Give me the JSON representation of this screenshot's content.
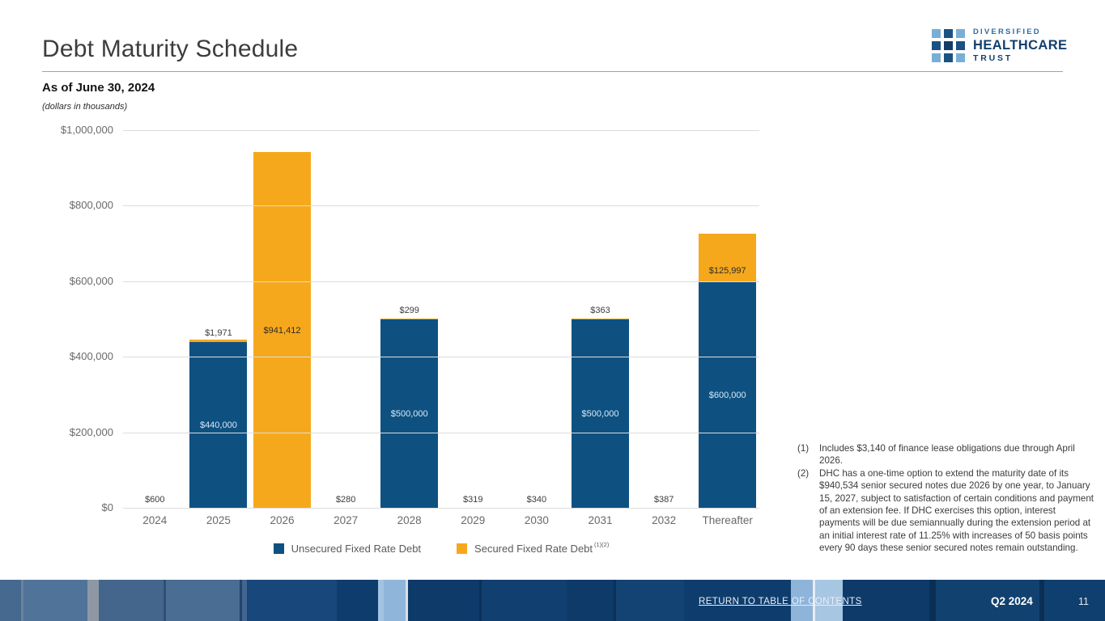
{
  "header": {
    "title": "Debt Maturity Schedule",
    "as_of": "As of June 30, 2024",
    "units_note": "(dollars in thousands)",
    "logo": {
      "line1": "DIVERSIFIED",
      "line2": "HEALTHCARE",
      "line3": "TRUST"
    }
  },
  "colors": {
    "unsecured": "#0e5181",
    "secured": "#f6a81c",
    "gridline": "#dcdcdc",
    "axis_text": "#696969"
  },
  "chart_data": {
    "type": "bar",
    "stacked": true,
    "title": "Debt Maturity Schedule",
    "units": "dollars in thousands",
    "xlabel": "",
    "ylabel": "",
    "ylim": [
      0,
      1000000
    ],
    "grid": true,
    "categories": [
      "2024",
      "2025",
      "2026",
      "2027",
      "2028",
      "2029",
      "2030",
      "2031",
      "2032",
      "Thereafter"
    ],
    "y_ticks": [
      {
        "value": 0,
        "label": "$0"
      },
      {
        "value": 200000,
        "label": "$200,000"
      },
      {
        "value": 400000,
        "label": "$400,000"
      },
      {
        "value": 600000,
        "label": "$600,000"
      },
      {
        "value": 800000,
        "label": "$800,000"
      },
      {
        "value": 1000000,
        "label": "$1,000,000"
      }
    ],
    "series": [
      {
        "name": "Unsecured Fixed Rate Debt",
        "key": "unsecured",
        "color": "#0e5181",
        "values": [
          0,
          440000,
          0,
          0,
          500000,
          0,
          0,
          500000,
          0,
          600000
        ]
      },
      {
        "name": "Secured Fixed Rate Debt",
        "key": "secured",
        "color": "#f6a81c",
        "values": [
          600,
          1971,
          941412,
          280,
          299,
          319,
          340,
          363,
          387,
          125997
        ]
      }
    ],
    "bars": [
      {
        "category": "2024",
        "segments": [
          {
            "series": "secured",
            "value": 600,
            "label": "$600",
            "label_pos": "above"
          }
        ]
      },
      {
        "category": "2025",
        "segments": [
          {
            "series": "unsecured",
            "value": 440000,
            "label": "$440,000",
            "label_pos": "center"
          },
          {
            "series": "secured",
            "value": 1971,
            "label": "$1,971",
            "label_pos": "above"
          }
        ]
      },
      {
        "category": "2026",
        "segments": [
          {
            "series": "secured",
            "value": 941412,
            "label": "$941,412",
            "label_pos": "center"
          }
        ]
      },
      {
        "category": "2027",
        "segments": [
          {
            "series": "secured",
            "value": 280,
            "label": "$280",
            "label_pos": "above"
          }
        ]
      },
      {
        "category": "2028",
        "segments": [
          {
            "series": "unsecured",
            "value": 500000,
            "label": "$500,000",
            "label_pos": "center"
          },
          {
            "series": "secured",
            "value": 299,
            "label": "$299",
            "label_pos": "above"
          }
        ]
      },
      {
        "category": "2029",
        "segments": [
          {
            "series": "secured",
            "value": 319,
            "label": "$319",
            "label_pos": "above"
          }
        ]
      },
      {
        "category": "2030",
        "segments": [
          {
            "series": "secured",
            "value": 340,
            "label": "$340",
            "label_pos": "above"
          }
        ]
      },
      {
        "category": "2031",
        "segments": [
          {
            "series": "unsecured",
            "value": 500000,
            "label": "$500,000",
            "label_pos": "center"
          },
          {
            "series": "secured",
            "value": 363,
            "label": "$363",
            "label_pos": "above"
          }
        ]
      },
      {
        "category": "2032",
        "segments": [
          {
            "series": "secured",
            "value": 387,
            "label": "$387",
            "label_pos": "above"
          }
        ]
      },
      {
        "category": "Thereafter",
        "segments": [
          {
            "series": "unsecured",
            "value": 600000,
            "label": "$600,000",
            "label_pos": "center"
          },
          {
            "series": "secured",
            "value": 125997,
            "label": "$125,997",
            "label_pos": "base"
          }
        ]
      }
    ],
    "legend": {
      "position": "bottom",
      "items": [
        {
          "label": "Unsecured Fixed Rate Debt",
          "color": "#0e5181",
          "superscript": ""
        },
        {
          "label": "Secured Fixed Rate Debt",
          "color": "#f6a81c",
          "superscript": "(1)(2)"
        }
      ]
    }
  },
  "footnotes": [
    {
      "marker": "(1)",
      "text": "Includes $3,140 of finance lease obligations due through April 2026."
    },
    {
      "marker": "(2)",
      "text": "DHC has a one-time option to extend the maturity date of its $940,534 senior secured notes due 2026 by one year, to January 15, 2027, subject to satisfaction of certain conditions and payment of an extension fee. If DHC exercises this option, interest payments will be due semiannually during the extension period at an initial interest rate of 11.25% with increases of 50 basis points every 90 days these senior secured notes remain outstanding."
    }
  ],
  "footer": {
    "link": "RETURN TO TABLE OF CONTENTS",
    "quarter": "Q2 2024",
    "page": "11"
  }
}
